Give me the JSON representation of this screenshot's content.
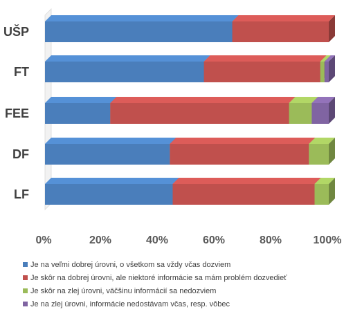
{
  "chart_data": {
    "type": "bar",
    "orientation": "horizontal",
    "stacked": "percent",
    "style": "3d",
    "categories": [
      "UŠP",
      "FT",
      "FEE",
      "DF",
      "LF"
    ],
    "x_ticks": [
      "0%",
      "20%",
      "40%",
      "60%",
      "80%",
      "100%"
    ],
    "xlim": [
      0,
      100
    ],
    "grid": false,
    "legend_position": "bottom",
    "series": [
      {
        "name": "Je na veľmi dobrej úrovni, o všetkom sa vždy včas dozviem",
        "color": "#4A7EBB",
        "values": [
          66,
          56,
          23,
          44,
          45
        ]
      },
      {
        "name": "Je skôr na dobrej úrovni, ale niektoré informácie sa mám problém dozvedieť",
        "color": "#C0504D",
        "values": [
          34,
          41,
          63,
          49,
          50
        ]
      },
      {
        "name": "Je skôr na zlej úrovni, väčšinu informácií sa nedozviem",
        "color": "#9BBB59",
        "values": [
          0,
          1.5,
          8,
          7,
          5
        ]
      },
      {
        "name": "Je na zlej úrovni, informácie nedostávam včas, resp. vôbec",
        "color": "#8064A2",
        "values": [
          0,
          1.5,
          6,
          0,
          0
        ]
      }
    ]
  }
}
